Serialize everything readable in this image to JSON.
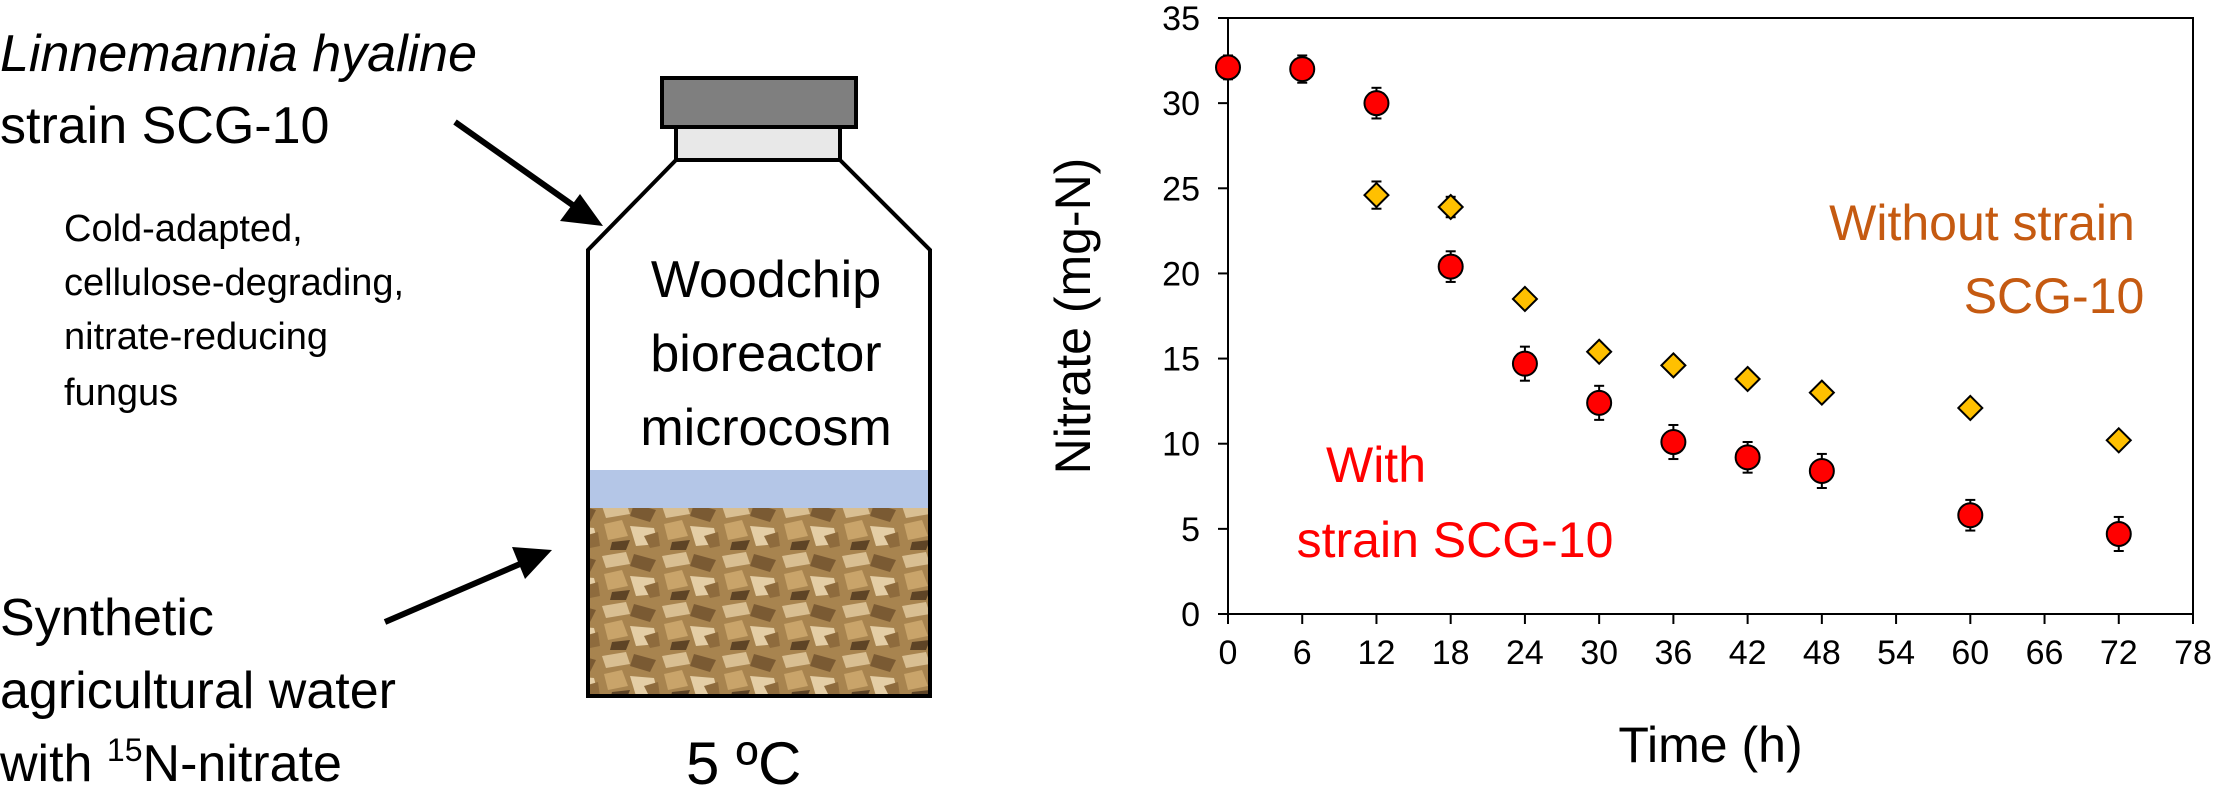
{
  "illustration": {
    "organism_name": "Linnemannia hyaline",
    "strain_label": "strain SCG-10",
    "description_lines": [
      "Cold-adapted,",
      "cellulose-degrading,",
      "nitrate-reducing",
      "fungus"
    ],
    "bottle_label_lines": [
      "Woodchip",
      "bioreactor",
      "microcosm"
    ],
    "water_line1": "Synthetic",
    "water_line2": "agricultural water",
    "water_line3_prefix": "with ",
    "water_line3_sup": "15",
    "water_line3_suffix": "N-nitrate",
    "temperature": "5 ºC",
    "colors": {
      "cap": "#7f7f7f",
      "cap_ring": "#e8e8e8",
      "water_band": "#b4c6e7",
      "woodchips": "#a8844f"
    }
  },
  "chart_data": {
    "type": "scatter",
    "xlabel": "Time (h)",
    "ylabel": "Nitrate (mg-N)",
    "xlim": [
      0,
      78
    ],
    "ylim": [
      0,
      35
    ],
    "x_ticks": [
      0,
      6,
      12,
      18,
      24,
      30,
      36,
      42,
      48,
      54,
      60,
      66,
      72,
      78
    ],
    "y_ticks": [
      0,
      5,
      10,
      15,
      20,
      25,
      30,
      35
    ],
    "grid": false,
    "series": [
      {
        "name": "With strain SCG-10",
        "label_lines": [
          "With",
          "strain SCG-10"
        ],
        "marker": "circle",
        "color": "#ff0000",
        "x": [
          0,
          6,
          12,
          18,
          24,
          30,
          36,
          42,
          48,
          60,
          72
        ],
        "y": [
          32.1,
          32.0,
          30.0,
          20.4,
          14.7,
          12.4,
          10.1,
          9.2,
          8.4,
          5.8,
          4.7
        ],
        "error": [
          0.7,
          0.8,
          0.9,
          0.9,
          1.0,
          1.0,
          1.0,
          0.9,
          1.0,
          0.9,
          1.0
        ]
      },
      {
        "name": "Without strain SCG-10",
        "label_lines": [
          "Without strain",
          "SCG-10"
        ],
        "marker": "diamond",
        "color": "#ffc000",
        "text_color": "#c55a11",
        "x": [
          12,
          18,
          24,
          30,
          36,
          42,
          48,
          60,
          72
        ],
        "y": [
          24.6,
          23.9,
          18.5,
          15.4,
          14.6,
          13.8,
          13.0,
          12.1,
          10.2
        ],
        "error": [
          0.8,
          0.6,
          0.4,
          0.4,
          0.4,
          0.4,
          0.4,
          0.4,
          0.4
        ]
      }
    ]
  }
}
